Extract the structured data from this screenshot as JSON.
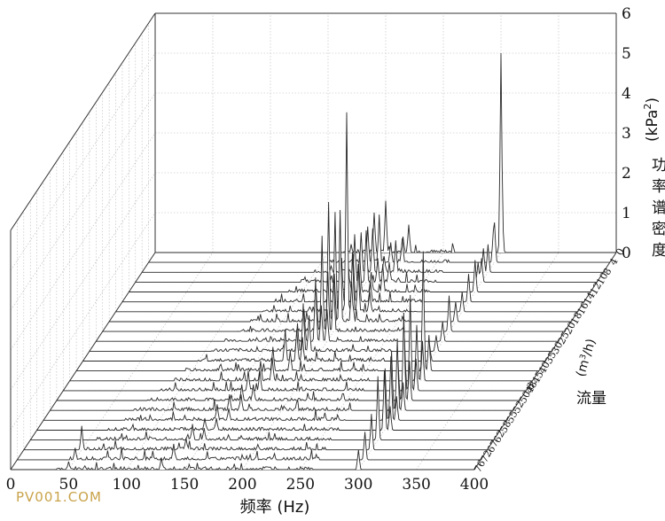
{
  "chart_data": {
    "type": "waterfall-3d",
    "xlabel": "频率 (Hz)",
    "x_ticks": [
      0,
      50,
      100,
      150,
      200,
      250,
      300,
      350,
      400
    ],
    "xlim": [
      0,
      400
    ],
    "zlabel_chars": [
      "功",
      "率",
      "谱",
      "密",
      "度"
    ],
    "zlabel_unit": "(kPa",
    "zlabel_unit_sup": "2",
    "zlabel_unit_close": ")",
    "z_ticks": [
      0,
      1,
      2,
      3,
      4,
      5,
      6
    ],
    "zlim": [
      0,
      6
    ],
    "ylabel": "流量",
    "yunit": "(m",
    "yunit_sup": "3",
    "yunit_rest": "/h)",
    "flow_rates": [
      "0",
      "4",
      "8",
      "10",
      "12",
      "14",
      "16",
      "18",
      "20",
      "25",
      "30",
      "35",
      "40",
      "45",
      "48",
      "50.6",
      "52",
      "55",
      "58",
      "62",
      "67",
      "72",
      "76"
    ],
    "series_peaks": [
      {
        "flow": "0",
        "peaks": [
          [
            190,
            1.0
          ],
          [
            200,
            1.3
          ],
          [
            215,
            0.4
          ],
          [
            220,
            0.7
          ],
          [
            300,
            5.0
          ],
          [
            301,
            1.2
          ]
        ]
      },
      {
        "flow": "4",
        "peaks": [
          [
            190,
            0.9
          ],
          [
            200,
            1.2
          ],
          [
            210,
            0.5
          ],
          [
            220,
            0.6
          ],
          [
            299,
            0.8
          ],
          [
            300,
            1.0
          ]
        ]
      },
      {
        "flow": "8",
        "peaks": [
          [
            190,
            1.0
          ],
          [
            200,
            1.1
          ],
          [
            210,
            0.4
          ],
          [
            220,
            0.8
          ],
          [
            296,
            0.6
          ],
          [
            300,
            0.7
          ]
        ]
      },
      {
        "flow": "10",
        "peaks": [
          [
            190,
            1.2
          ],
          [
            200,
            1.3
          ],
          [
            210,
            0.6
          ],
          [
            220,
            0.5
          ],
          [
            297,
            0.5
          ],
          [
            300,
            0.6
          ]
        ]
      },
      {
        "flow": "12",
        "peaks": [
          [
            190,
            0.8
          ],
          [
            200,
            1.0
          ],
          [
            210,
            0.5
          ],
          [
            220,
            0.7
          ],
          [
            300,
            0.8
          ]
        ]
      },
      {
        "flow": "14",
        "peaks": [
          [
            190,
            1.1
          ],
          [
            200,
            1.2
          ],
          [
            205,
            0.9
          ],
          [
            215,
            0.5
          ],
          [
            300,
            0.7
          ]
        ]
      },
      {
        "flow": "16",
        "peaks": [
          [
            190,
            2.5
          ],
          [
            200,
            5.0
          ],
          [
            205,
            1.5
          ],
          [
            210,
            1.2
          ],
          [
            220,
            0.5
          ],
          [
            300,
            0.5
          ]
        ]
      },
      {
        "flow": "18",
        "peaks": [
          [
            190,
            3.0
          ],
          [
            195,
            1.2
          ],
          [
            200,
            2.8
          ],
          [
            210,
            1.0
          ],
          [
            300,
            0.5
          ]
        ]
      },
      {
        "flow": "20",
        "peaks": [
          [
            185,
            1.0
          ],
          [
            190,
            2.4
          ],
          [
            195,
            1.5
          ],
          [
            200,
            1.4
          ],
          [
            300,
            0.9
          ]
        ]
      },
      {
        "flow": "25",
        "peaks": [
          [
            180,
            0.8
          ],
          [
            190,
            1.6
          ],
          [
            195,
            0.9
          ],
          [
            200,
            0.8
          ],
          [
            300,
            0.5
          ]
        ]
      },
      {
        "flow": "30",
        "peaks": [
          [
            180,
            0.7
          ],
          [
            185,
            1.2
          ],
          [
            190,
            0.9
          ],
          [
            300,
            0.4
          ]
        ]
      },
      {
        "flow": "35",
        "peaks": [
          [
            175,
            0.8
          ],
          [
            185,
            0.8
          ],
          [
            190,
            0.6
          ],
          [
            300,
            0.4
          ]
        ]
      },
      {
        "flow": "40",
        "peaks": [
          [
            170,
            0.6
          ],
          [
            185,
            0.5
          ],
          [
            300,
            3.0
          ],
          [
            305,
            0.9
          ]
        ]
      },
      {
        "flow": "45",
        "peaks": [
          [
            165,
            0.5
          ],
          [
            175,
            0.6
          ],
          [
            300,
            1.4
          ],
          [
            305,
            1.0
          ]
        ]
      },
      {
        "flow": "48",
        "peaks": [
          [
            160,
            0.5
          ],
          [
            170,
            0.5
          ],
          [
            295,
            1.3
          ],
          [
            300,
            2.4
          ],
          [
            305,
            0.8
          ]
        ]
      },
      {
        "flow": "50.6",
        "peaks": [
          [
            160,
            0.4
          ],
          [
            170,
            0.4
          ],
          [
            295,
            1.0
          ],
          [
            300,
            2.2
          ],
          [
            305,
            1.0
          ]
        ]
      },
      {
        "flow": "52",
        "peaks": [
          [
            155,
            0.4
          ],
          [
            165,
            0.4
          ],
          [
            295,
            1.5
          ],
          [
            300,
            1.8
          ],
          [
            305,
            0.7
          ]
        ]
      },
      {
        "flow": "55",
        "peaks": [
          [
            150,
            0.4
          ],
          [
            160,
            0.3
          ],
          [
            295,
            1.3
          ],
          [
            300,
            1.6
          ],
          [
            305,
            0.6
          ]
        ]
      },
      {
        "flow": "58",
        "peaks": [
          [
            145,
            0.3
          ],
          [
            155,
            0.3
          ],
          [
            300,
            1.5
          ],
          [
            305,
            0.6
          ]
        ]
      },
      {
        "flow": "62",
        "peaks": [
          [
            140,
            0.4
          ],
          [
            150,
            0.3
          ],
          [
            300,
            1.6
          ]
        ]
      },
      {
        "flow": "67",
        "peaks": [
          [
            50,
            0.6
          ],
          [
            140,
            0.3
          ],
          [
            300,
            0.9
          ]
        ]
      },
      {
        "flow": "72",
        "peaks": [
          [
            50,
            0.3
          ],
          [
            135,
            0.4
          ],
          [
            300,
            0.7
          ]
        ]
      },
      {
        "flow": "76",
        "peaks": [
          [
            50,
            0.2
          ],
          [
            130,
            0.3
          ],
          [
            300,
            0.5
          ]
        ]
      }
    ],
    "grid": true
  },
  "watermark": "PV001.COM"
}
